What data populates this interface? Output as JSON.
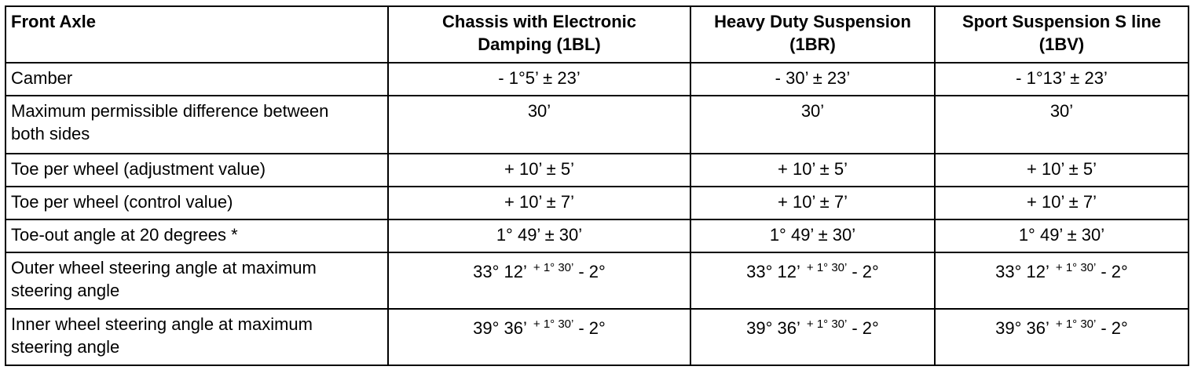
{
  "table": {
    "header": [
      {
        "lines": [
          "Front Axle"
        ]
      },
      {
        "lines": [
          "Chassis with Electronic",
          "Damping (1BL)"
        ]
      },
      {
        "lines": [
          "Heavy Duty Suspension",
          "(1BR)"
        ]
      },
      {
        "lines": [
          "Sport Suspension S line",
          "(1BV)"
        ]
      }
    ],
    "rows": [
      {
        "label": [
          "Camber"
        ],
        "values": [
          {
            "text": "- 1°5’ ± 23’"
          },
          {
            "text": "- 30’ ± 23’"
          },
          {
            "text": "- 1°13’ ± 23’"
          }
        ]
      },
      {
        "label": [
          "Maximum permissible difference between",
          "both sides"
        ],
        "values": [
          {
            "text": "30’"
          },
          {
            "text": "30’"
          },
          {
            "text": "30’"
          }
        ]
      },
      {
        "label": [
          "Toe per wheel (adjustment value)"
        ],
        "values": [
          {
            "text": "+ 10’ ± 5’"
          },
          {
            "text": "+ 10’ ± 5’"
          },
          {
            "text": "+ 10’ ± 5’"
          }
        ]
      },
      {
        "label": [
          "Toe per wheel (control value)"
        ],
        "values": [
          {
            "text": "+ 10’ ± 7’"
          },
          {
            "text": "+ 10’ ± 7’"
          },
          {
            "text": "+ 10’ ± 7’"
          }
        ]
      },
      {
        "label": [
          "Toe-out angle at 20 degrees *"
        ],
        "values": [
          {
            "text": "1° 49’ ± 30’"
          },
          {
            "text": "1° 49’ ± 30’"
          },
          {
            "text": "1° 49’ ± 30’"
          }
        ]
      },
      {
        "label": [
          "Outer wheel steering angle at maximum",
          "steering angle"
        ],
        "values": [
          {
            "main": "33° 12’",
            "sup": "+ 1° 30’",
            "tail": "- 2°"
          },
          {
            "main": "33° 12’",
            "sup": "+ 1° 30’",
            "tail": "- 2°"
          },
          {
            "main": "33° 12’",
            "sup": "+ 1° 30’",
            "tail": "- 2°"
          }
        ]
      },
      {
        "label": [
          "Inner wheel steering angle at maximum",
          "steering angle"
        ],
        "values": [
          {
            "main": "39° 36’",
            "sup": "+ 1° 30’",
            "tail": "- 2°"
          },
          {
            "main": "39° 36’",
            "sup": "+ 1° 30’",
            "tail": "- 2°"
          },
          {
            "main": "39° 36’",
            "sup": "+ 1° 30’",
            "tail": "- 2°"
          }
        ]
      }
    ]
  }
}
